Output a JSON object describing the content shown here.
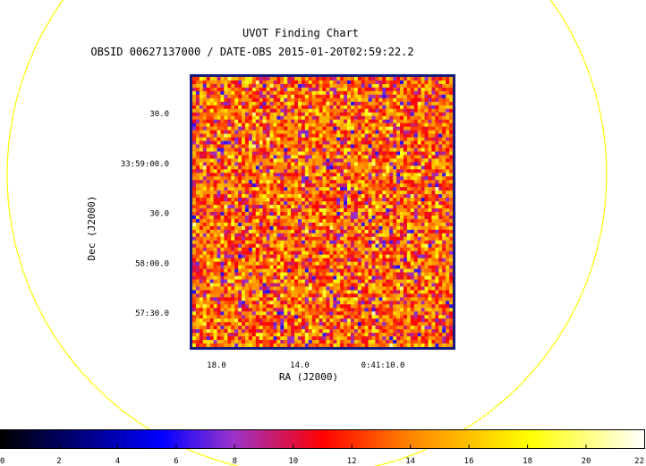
{
  "chart_data": {
    "type": "heatmap",
    "title": "UVOT Finding Chart",
    "subtitle": "OBSID 00627137000 / DATE-OBS 2015-01-20T02:59:22.2",
    "xlabel": "RA (J2000)",
    "ylabel": "Dec (J2000)",
    "x_ticks": [
      {
        "label": "18.0",
        "value": 18.0
      },
      {
        "label": "14.0",
        "value": 14.0
      },
      {
        "label": "0:41:10.0",
        "value": 10.0
      }
    ],
    "y_ticks": [
      {
        "label": "30.0",
        "value": 59.5
      },
      {
        "label": "33:59:00.0",
        "value": 59.0
      },
      {
        "label": "30.0",
        "value": 58.5
      },
      {
        "label": "58:00.0",
        "value": 58.0
      },
      {
        "label": "57:30.0",
        "value": 57.5
      }
    ],
    "colorbar": {
      "ticks": [
        "0",
        "2",
        "4",
        "6",
        "8",
        "10",
        "12",
        "14",
        "16",
        "18",
        "20",
        "22"
      ],
      "range": [
        0,
        22
      ],
      "colors": [
        "#000000",
        "#0000ff",
        "#9933cc",
        "#ff0000",
        "#ff8800",
        "#ffff00",
        "#ffffff"
      ]
    },
    "image_grid": {
      "nx": 74,
      "ny": 76,
      "value_range": [
        6,
        21
      ]
    },
    "overlay": {
      "shape": "circle",
      "color": "#ffff00"
    },
    "frame_color": "#1a1a7a"
  }
}
